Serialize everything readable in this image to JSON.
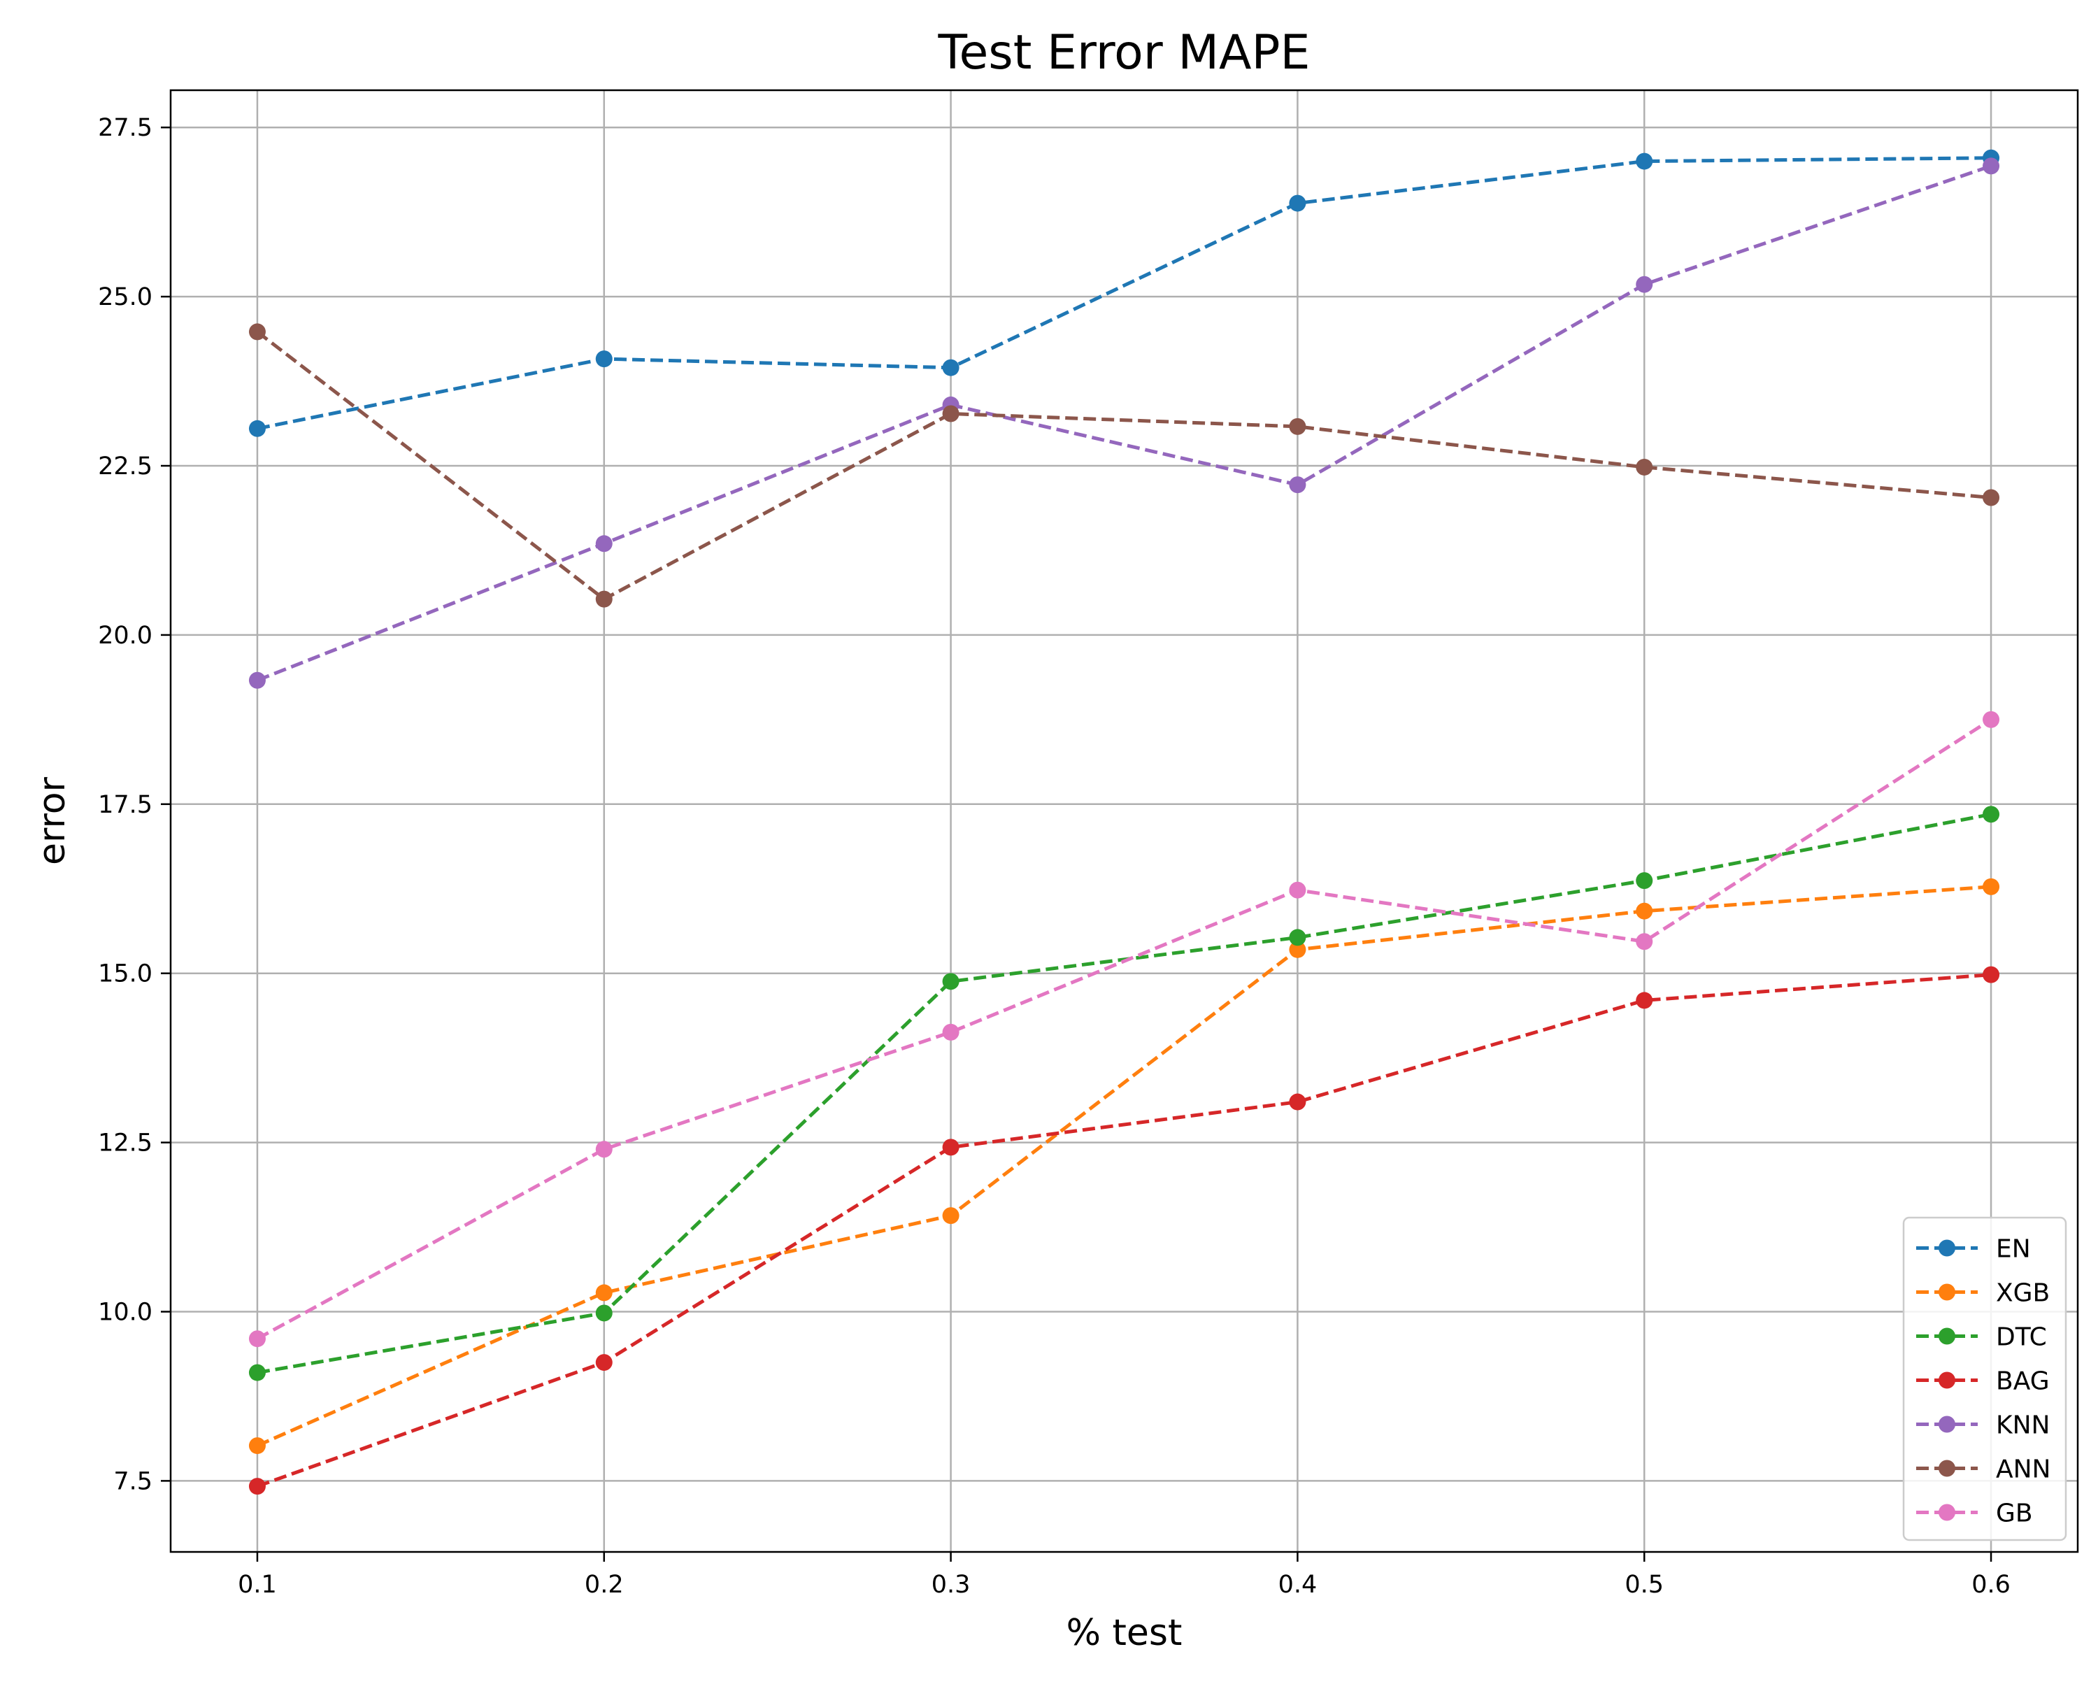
{
  "chart_data": {
    "type": "line",
    "title": "Test Error MAPE",
    "xlabel": "% test",
    "ylabel": "error",
    "x": [
      0.1,
      0.2,
      0.3,
      0.4,
      0.5,
      0.6
    ],
    "x_tick_labels": [
      "0.1",
      "0.2",
      "0.3",
      "0.4",
      "0.5",
      "0.6"
    ],
    "y_ticks": [
      7.5,
      10.0,
      12.5,
      15.0,
      17.5,
      20.0,
      22.5,
      25.0,
      27.5
    ],
    "y_tick_labels": [
      "7.5",
      "10.0",
      "12.5",
      "15.0",
      "17.5",
      "20.0",
      "22.5",
      "25.0",
      "27.5"
    ],
    "xlim": [
      0.075,
      0.625
    ],
    "ylim": [
      6.45,
      28.05
    ],
    "grid": true,
    "line_style": "dashed",
    "marker": "circle",
    "legend_position": "lower-right",
    "series": [
      {
        "name": "EN",
        "color": "#1f77b4",
        "values": [
          23.05,
          24.08,
          23.95,
          26.38,
          27.0,
          27.05
        ]
      },
      {
        "name": "XGB",
        "color": "#ff7f0e",
        "values": [
          8.02,
          10.28,
          11.42,
          15.35,
          15.92,
          16.28
        ]
      },
      {
        "name": "DTC",
        "color": "#2ca02c",
        "values": [
          9.1,
          9.98,
          14.88,
          15.53,
          16.37,
          17.35
        ]
      },
      {
        "name": "BAG",
        "color": "#d62728",
        "values": [
          7.42,
          9.25,
          12.43,
          13.1,
          14.6,
          14.98
        ]
      },
      {
        "name": "KNN",
        "color": "#9467bd",
        "values": [
          19.33,
          21.35,
          23.4,
          22.22,
          25.18,
          26.93
        ]
      },
      {
        "name": "ANN",
        "color": "#8c564b",
        "values": [
          24.48,
          20.53,
          23.27,
          23.08,
          22.48,
          22.03
        ]
      },
      {
        "name": "GB",
        "color": "#e377c2",
        "values": [
          9.6,
          12.4,
          14.13,
          16.23,
          15.47,
          18.75
        ]
      }
    ]
  }
}
